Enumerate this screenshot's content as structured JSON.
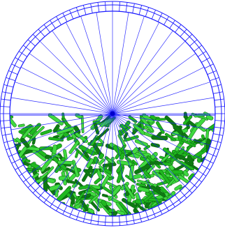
{
  "scene": {
    "colors": {
      "background": "#ffffff",
      "mesh_line": "#1a1aff",
      "mesh_line_dark": "#0000cc",
      "particle_fill_light": "#3fd93f",
      "particle_fill_mid": "#1fb81f",
      "particle_fill_dark": "#0e7a12",
      "particle_edge": "#0a5a10"
    },
    "radial_spoke_count": 40,
    "outer_ring_segment_count": 96,
    "fill_level_fraction": 0.44,
    "fill_line_visible": true,
    "center_marker_visible": true,
    "particle_count": 520
  }
}
